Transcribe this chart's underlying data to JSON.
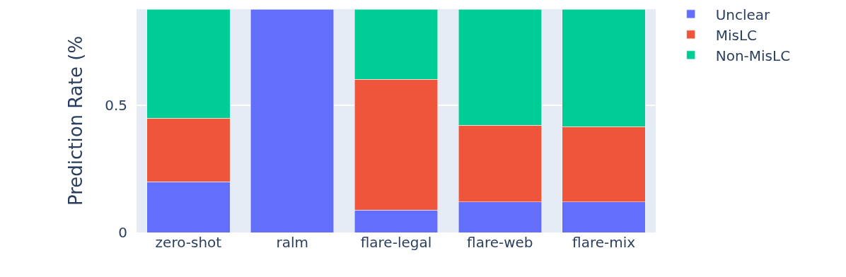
{
  "chart_data": {
    "type": "bar",
    "stacked": true,
    "ylabel": "Prediction Rate (%",
    "categories": [
      "zero-shot",
      "ralm",
      "flare-legal",
      "flare-web",
      "flare-mix"
    ],
    "series": [
      {
        "name": "Unclear",
        "color": "#636efa",
        "values": [
          0.2,
          0.88,
          0.088,
          0.12,
          0.12
        ]
      },
      {
        "name": "MisLC",
        "color": "#ef553b",
        "values": [
          0.25,
          null,
          0.516,
          0.302,
          0.297
        ]
      },
      {
        "name": "Non-MisLC",
        "color": "#00cc96",
        "values": [
          0.43,
          null,
          0.276,
          0.458,
          0.463
        ]
      }
    ],
    "ylim": [
      0,
      0.88
    ],
    "yticks": [
      0,
      0.5
    ],
    "grid": "y",
    "legend": "top right"
  }
}
